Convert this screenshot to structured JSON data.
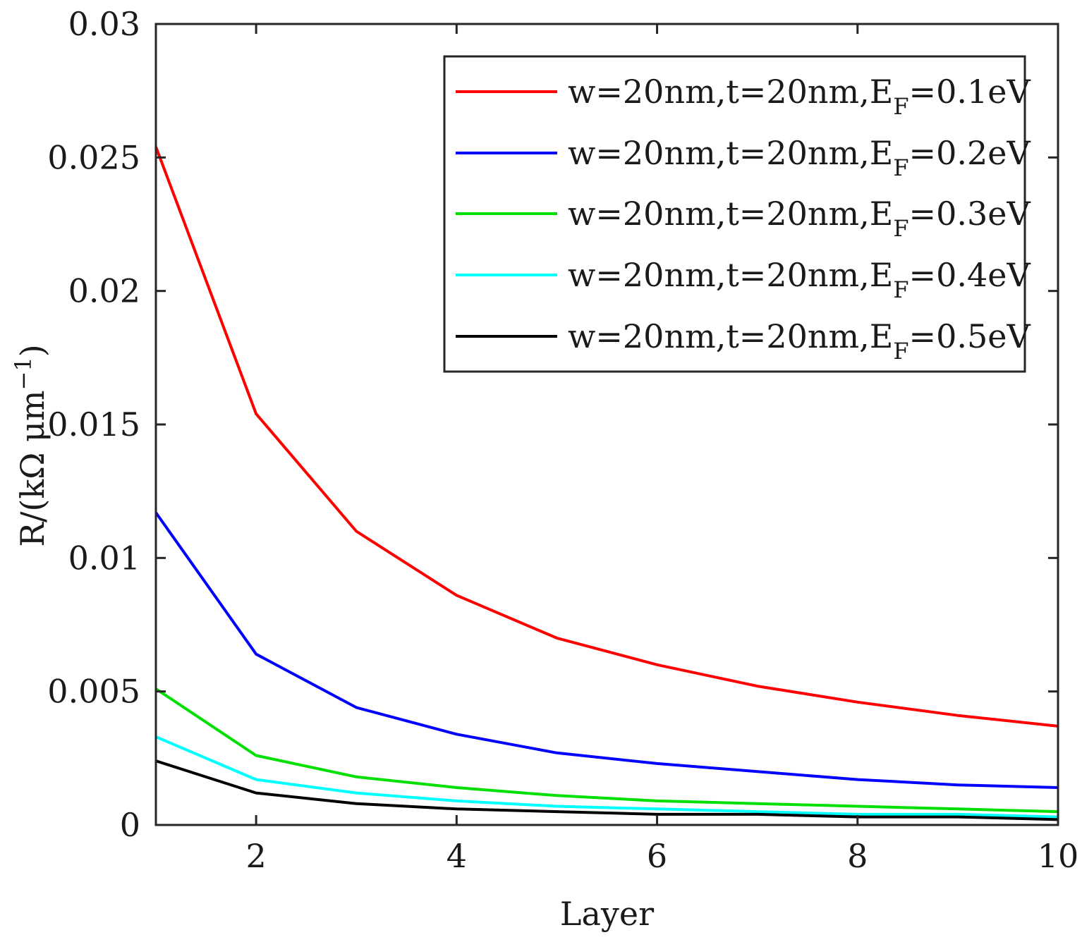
{
  "chart_data": {
    "type": "line",
    "title": "",
    "xlabel": "Layer",
    "ylabel_parts": {
      "main": "R/(kΩ μm",
      "sup": "−1",
      "close": ")"
    },
    "xlim": [
      1,
      10
    ],
    "ylim": [
      0,
      0.03
    ],
    "xticks": [
      2,
      4,
      6,
      8,
      10
    ],
    "yticks": [
      0,
      0.005,
      0.01,
      0.015,
      0.02,
      0.025,
      0.03
    ],
    "ytick_labels": [
      "0",
      "0.005",
      "0.01",
      "0.015",
      "0.02",
      "0.025",
      "0.03"
    ],
    "grid": false,
    "legend_position": "top-right",
    "x": [
      1,
      2,
      3,
      4,
      5,
      6,
      7,
      8,
      9,
      10
    ],
    "series": [
      {
        "name_main": "w=20nm,t=20nm,E",
        "name_sub": "F",
        "name_tail": "=0.1eV",
        "color": "#ff0000",
        "values": [
          0.0254,
          0.0154,
          0.011,
          0.0086,
          0.007,
          0.006,
          0.0052,
          0.0046,
          0.0041,
          0.0037
        ]
      },
      {
        "name_main": "w=20nm,t=20nm,E",
        "name_sub": "F",
        "name_tail": "=0.2eV",
        "color": "#0000ff",
        "values": [
          0.0117,
          0.0064,
          0.0044,
          0.0034,
          0.0027,
          0.0023,
          0.002,
          0.0017,
          0.0015,
          0.0014
        ]
      },
      {
        "name_main": "w=20nm,t=20nm,E",
        "name_sub": "F",
        "name_tail": "=0.3eV",
        "color": "#00e000",
        "values": [
          0.0051,
          0.0026,
          0.0018,
          0.0014,
          0.0011,
          0.0009,
          0.0008,
          0.0007,
          0.0006,
          0.0005
        ]
      },
      {
        "name_main": "w=20nm,t=20nm,E",
        "name_sub": "F",
        "name_tail": "=0.4eV",
        "color": "#00ffff",
        "values": [
          0.0033,
          0.0017,
          0.0012,
          0.0009,
          0.0007,
          0.0006,
          0.0005,
          0.0004,
          0.0004,
          0.0003
        ]
      },
      {
        "name_main": "w=20nm,t=20nm,E",
        "name_sub": "F",
        "name_tail": "=0.5eV",
        "color": "#000000",
        "values": [
          0.0024,
          0.0012,
          0.0008,
          0.0006,
          0.0005,
          0.0004,
          0.0004,
          0.0003,
          0.0003,
          0.0002
        ]
      }
    ]
  }
}
